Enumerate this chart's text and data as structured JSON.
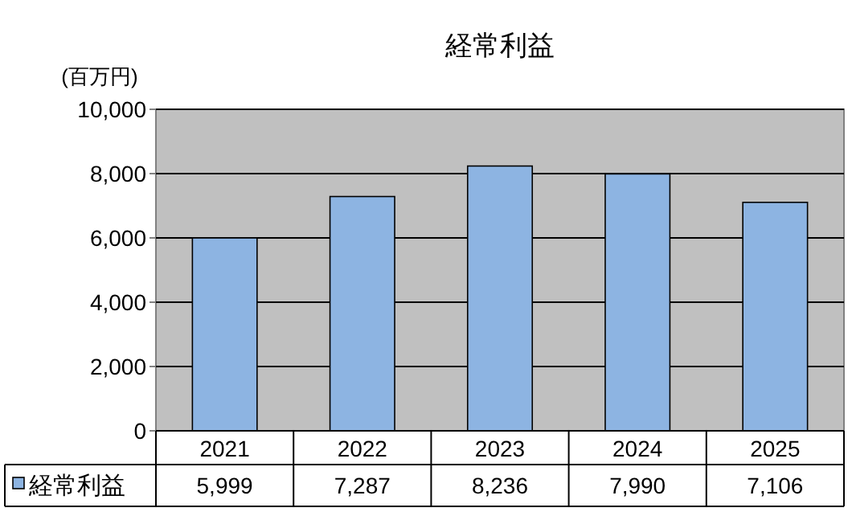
{
  "chart_data": {
    "type": "bar",
    "title": "経常利益",
    "ylabel": "(百万円)",
    "categories": [
      "2021",
      "2022",
      "2023",
      "2024",
      "2025"
    ],
    "series": [
      {
        "name": "経常利益",
        "color": "#8db4e2",
        "values": [
          5999,
          7287,
          8236,
          7990,
          7106
        ],
        "value_labels": [
          "5,999",
          "7,287",
          "8,236",
          "7,990",
          "7,106"
        ]
      }
    ],
    "ylim": [
      0,
      10000
    ],
    "yticks": [
      {
        "value": 0,
        "label": "0"
      },
      {
        "value": 2000,
        "label": "2,000"
      },
      {
        "value": 4000,
        "label": "4,000"
      },
      {
        "value": 6000,
        "label": "6,000"
      },
      {
        "value": 8000,
        "label": "8,000"
      },
      {
        "value": 10000,
        "label": "10,000"
      }
    ],
    "grid": "y",
    "legend": "bottom"
  }
}
